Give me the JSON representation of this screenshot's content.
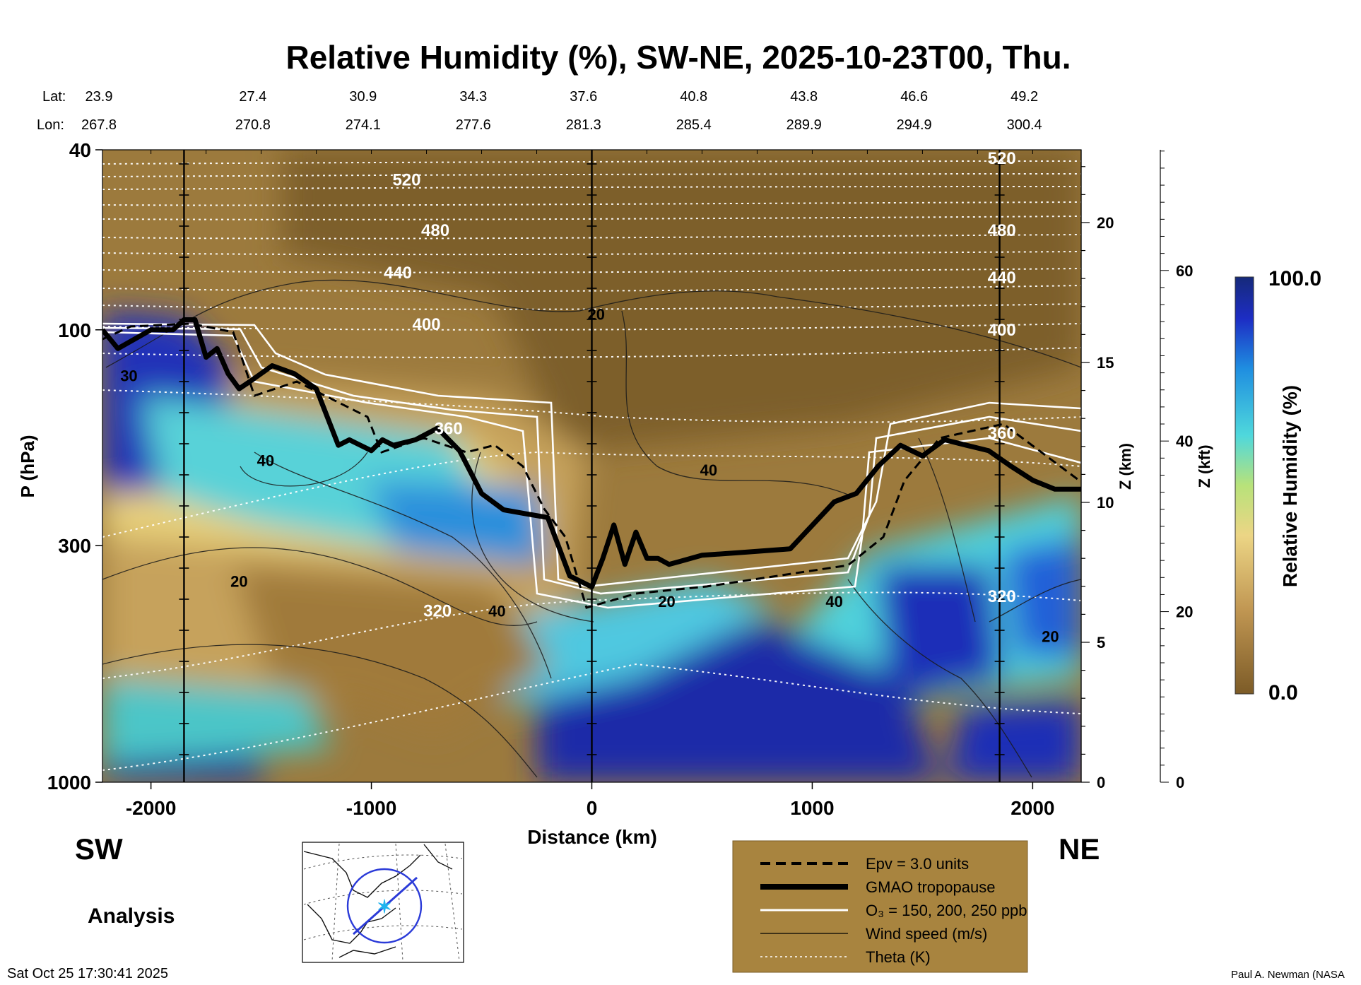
{
  "chart_data": {
    "type": "heatmap",
    "title": "Relative Humidity (%), SW-NE, 2025-10-23T00, Thu.",
    "xlabel": "Distance (km)",
    "ylabel": "P (hPa)",
    "y2label": "Z (km)",
    "y3label": "Z (kft)",
    "xlim": [
      -2220,
      2220
    ],
    "ylim": [
      1000,
      40
    ],
    "x_ticks": [
      -2000,
      -1000,
      0,
      1000,
      2000
    ],
    "x_tick_labels": [
      "-2000",
      "-1000",
      "0",
      "1000",
      "2000"
    ],
    "p_ticks": [
      {
        "value": 40,
        "label": "40"
      },
      {
        "value": 100,
        "label": "100"
      },
      {
        "value": 300,
        "label": "300"
      },
      {
        "value": 1000,
        "label": "1000"
      }
    ],
    "z_km_ticks": [
      {
        "value": 0,
        "label": "0"
      },
      {
        "value": 5,
        "label": "5"
      },
      {
        "value": 10,
        "label": "10"
      },
      {
        "value": 15,
        "label": "15"
      },
      {
        "value": 20,
        "label": "20"
      }
    ],
    "z_kft_ticks": [
      {
        "value": 0,
        "label": "0"
      },
      {
        "value": 20,
        "label": "20"
      },
      {
        "value": 40,
        "label": "40"
      },
      {
        "value": 60,
        "label": "60"
      }
    ],
    "vertical_markers_km": [
      -1850,
      0,
      1850
    ],
    "lat_label": "Lat:",
    "lon_label": "Lon:",
    "lat_lon": [
      {
        "x": -2220,
        "lat": "23.9",
        "lon": "267.8"
      },
      {
        "x": -1730,
        "lat": "27.4",
        "lon": "270.8"
      },
      {
        "x": -1230,
        "lat": "30.9",
        "lon": "274.1"
      },
      {
        "x": -730,
        "lat": "34.3",
        "lon": "277.6"
      },
      {
        "x": -230,
        "lat": "37.6",
        "lon": "281.3"
      },
      {
        "x": 270,
        "lat": "40.8",
        "lon": "285.4"
      },
      {
        "x": 770,
        "lat": "43.8",
        "lon": "289.9"
      },
      {
        "x": 1270,
        "lat": "46.6",
        "lon": "294.9"
      },
      {
        "x": 1770,
        "lat": "49.2",
        "lon": "300.4"
      }
    ],
    "colorbar": {
      "label": "Relative Humidity (%)",
      "min": 0.0,
      "max": 100.0,
      "min_label": "0.0",
      "max_label": "100.0"
    },
    "tropopause": {
      "name": "GMAO tropopause",
      "x": [
        -2220,
        -2150,
        -2000,
        -1900,
        -1850,
        -1800,
        -1750,
        -1700,
        -1650,
        -1600,
        -1550,
        -1450,
        -1350,
        -1250,
        -1150,
        -1100,
        -1000,
        -950,
        -900,
        -800,
        -700,
        -600,
        -500,
        -400,
        -300,
        -200,
        -100,
        0,
        50,
        100,
        150,
        200,
        250,
        300,
        350,
        400,
        500,
        700,
        900,
        1100,
        1200,
        1300,
        1400,
        1500,
        1600,
        1700,
        1800,
        1900,
        2000,
        2100,
        2220
      ],
      "p": [
        100,
        110,
        100,
        100,
        95,
        95,
        115,
        110,
        125,
        135,
        130,
        120,
        125,
        135,
        180,
        175,
        185,
        175,
        180,
        175,
        165,
        185,
        230,
        250,
        255,
        260,
        350,
        370,
        320,
        270,
        330,
        280,
        320,
        320,
        330,
        325,
        315,
        310,
        305,
        240,
        230,
        200,
        180,
        190,
        175,
        180,
        185,
        200,
        215,
        225,
        225
      ]
    },
    "series": [
      {
        "name": "Epv = 3.0 units",
        "style": "dashed"
      },
      {
        "name": "GMAO tropopause",
        "style": "thick"
      },
      {
        "name": "O3 = 150, 200, 250 ppb",
        "style": "white"
      },
      {
        "name": "Wind speed (m/s)",
        "style": "thin"
      },
      {
        "name": "Theta (K)",
        "style": "dotted"
      }
    ],
    "theta_labels": [
      {
        "x": -840,
        "p": 48,
        "text": "520"
      },
      {
        "x": -710,
        "p": 62,
        "text": "480"
      },
      {
        "x": -880,
        "p": 77,
        "text": "440"
      },
      {
        "x": -750,
        "p": 100,
        "text": "400"
      },
      {
        "x": -650,
        "p": 170,
        "text": "360"
      },
      {
        "x": -700,
        "p": 430,
        "text": "320"
      },
      {
        "x": 1860,
        "p": 43,
        "text": "520"
      },
      {
        "x": 1860,
        "p": 62,
        "text": "480"
      },
      {
        "x": 1860,
        "p": 79,
        "text": "440"
      },
      {
        "x": 1860,
        "p": 103,
        "text": "400"
      },
      {
        "x": 1860,
        "p": 174,
        "text": "360"
      },
      {
        "x": 1860,
        "p": 400,
        "text": "320"
      }
    ],
    "wind_labels": [
      {
        "x": -2100,
        "p": 130,
        "text": "30"
      },
      {
        "x": -1480,
        "p": 200,
        "text": "40"
      },
      {
        "x": -1600,
        "p": 370,
        "text": "20"
      },
      {
        "x": 20,
        "p": 95,
        "text": "20"
      },
      {
        "x": 530,
        "p": 210,
        "text": "40"
      },
      {
        "x": -430,
        "p": 430,
        "text": "40"
      },
      {
        "x": 340,
        "p": 410,
        "text": "20"
      },
      {
        "x": 1100,
        "p": 410,
        "text": "40"
      },
      {
        "x": 2080,
        "p": 490,
        "text": "20"
      }
    ],
    "legend": [
      {
        "style": "dashed",
        "text": "Epv = 3.0 units"
      },
      {
        "style": "thick",
        "text": "GMAO tropopause"
      },
      {
        "style": "white",
        "text": "O₃ = 150, 200, 250 ppb"
      },
      {
        "style": "thin",
        "text": "Wind speed (m/s)"
      },
      {
        "style": "dotted",
        "text": "Theta (K)"
      }
    ]
  },
  "labels": {
    "sw": "SW",
    "ne": "NE",
    "analysis": "Analysis",
    "timestamp": "Sat Oct 25 17:30:41 2025",
    "credit": "Paul A. Newman (NASA"
  },
  "colors": {
    "dry": "#8b6a32",
    "dry_mid": "#b08c4e",
    "moist_mid": "#e9d37e",
    "wet": "#4fd7e0",
    "very_wet": "#1b2ca8",
    "legend_bg": "#a8843f"
  }
}
